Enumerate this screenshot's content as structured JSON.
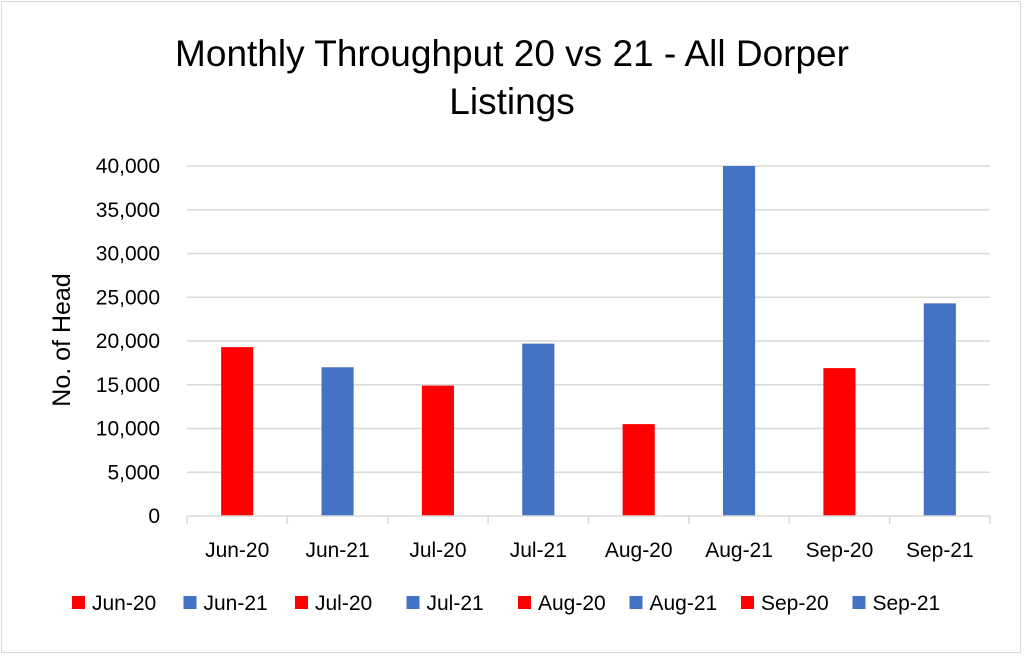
{
  "chart_data": {
    "type": "bar",
    "title": "Monthly Throughput 20 vs 21 - All Dorper Listings",
    "title_lines": [
      "Monthly Throughput 20 vs 21 - All Dorper",
      "Listings"
    ],
    "xlabel": "",
    "ylabel": "No. of Head",
    "ylim": [
      0,
      40000
    ],
    "yticks": [
      0,
      5000,
      10000,
      15000,
      20000,
      25000,
      30000,
      35000,
      40000
    ],
    "ytick_labels": [
      "0",
      "5,000",
      "10,000",
      "15,000",
      "20,000",
      "25,000",
      "30,000",
      "35,000",
      "40,000"
    ],
    "grid": true,
    "legend_position": "bottom",
    "categories": [
      "Jun-20",
      "Jun-21",
      "Jul-20",
      "Jul-21",
      "Aug-20",
      "Aug-21",
      "Sep-20",
      "Sep-21"
    ],
    "values": [
      19300,
      17000,
      14900,
      19700,
      10500,
      40000,
      16900,
      24300
    ],
    "colors": [
      "#ff0000",
      "#4472c4",
      "#ff0000",
      "#4472c4",
      "#ff0000",
      "#4472c4",
      "#ff0000",
      "#4472c4"
    ],
    "legend": [
      {
        "label": "Jun-20",
        "color": "#ff0000"
      },
      {
        "label": "Jun-21",
        "color": "#4472c4"
      },
      {
        "label": "Jul-20",
        "color": "#ff0000"
      },
      {
        "label": "Jul-21",
        "color": "#4472c4"
      },
      {
        "label": "Aug-20",
        "color": "#ff0000"
      },
      {
        "label": "Aug-21",
        "color": "#4472c4"
      },
      {
        "label": "Sep-20",
        "color": "#ff0000"
      },
      {
        "label": "Sep-21",
        "color": "#4472c4"
      }
    ]
  }
}
